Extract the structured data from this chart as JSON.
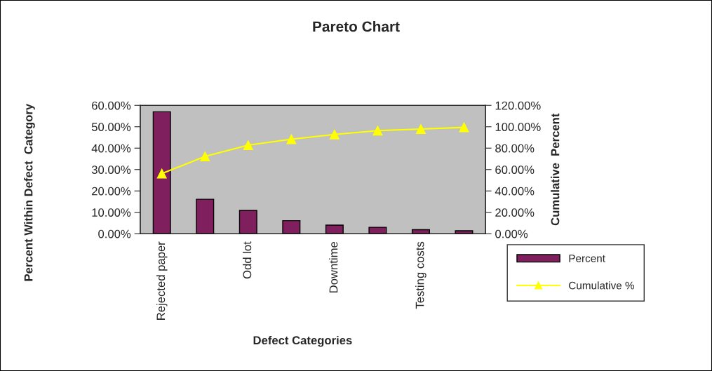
{
  "chart_data": {
    "type": "bar",
    "title": "Pareto Chart",
    "xlabel": "Defect Categories",
    "ylabel": "Percent Within Defect  Category",
    "y2label": "Cumulative  Percent",
    "categories": [
      "Rejected paper",
      null,
      "Odd lot",
      null,
      "Downtime",
      null,
      "Testing costs",
      null
    ],
    "series": [
      {
        "name": "Percent",
        "color": "#801f5e",
        "values": [
          57.0,
          16.1,
          10.9,
          6.1,
          4.0,
          3.0,
          1.9,
          1.4
        ]
      },
      {
        "name": "Cumulative %",
        "type": "line",
        "axis": "y2",
        "color": "#ffff00",
        "marker": "triangle",
        "values": [
          56.2,
          72.3,
          82.8,
          88.3,
          92.8,
          96.4,
          97.9,
          99.4
        ]
      }
    ],
    "ylim": [
      0,
      60
    ],
    "yticks": [
      {
        "value": 0,
        "label": "0.00%"
      },
      {
        "value": 10,
        "label": "10.00%"
      },
      {
        "value": 20,
        "label": "20.00%"
      },
      {
        "value": 30,
        "label": "30.00%"
      },
      {
        "value": 40,
        "label": "40.00%"
      },
      {
        "value": 50,
        "label": "50.00%"
      },
      {
        "value": 60,
        "label": "60.00%"
      }
    ],
    "y2lim": [
      0,
      120
    ],
    "y2ticks": [
      {
        "value": 0,
        "label": "0.00%"
      },
      {
        "value": 20,
        "label": "20.00%"
      },
      {
        "value": 40,
        "label": "40.00%"
      },
      {
        "value": 60,
        "label": "60.00%"
      },
      {
        "value": 80,
        "label": "80.00%"
      },
      {
        "value": 100,
        "label": "100.00%"
      },
      {
        "value": 120,
        "label": "120.00%"
      }
    ],
    "grid": false,
    "legend": "bottom right"
  }
}
